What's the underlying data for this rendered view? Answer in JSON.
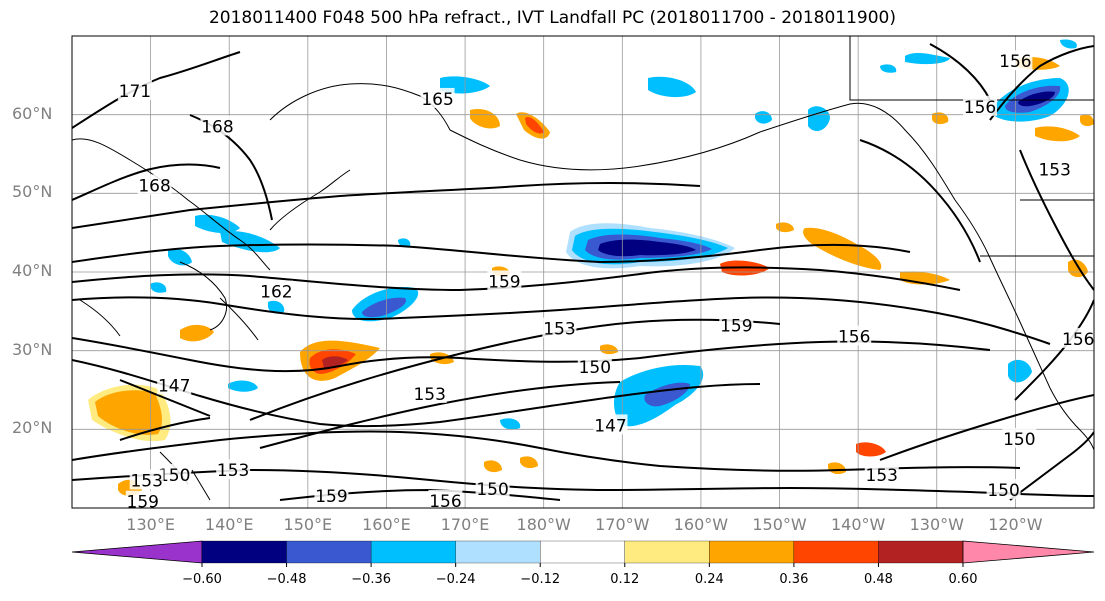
{
  "title": "2018011400 F048 500 hPa refract., IVT Landfall PC (2018011700 - 2018011900)",
  "lat_labels": [
    {
      "text": "60°N",
      "lat": 60
    },
    {
      "text": "50°N",
      "lat": 50
    },
    {
      "text": "40°N",
      "lat": 40
    },
    {
      "text": "30°N",
      "lat": 30
    },
    {
      "text": "20°N",
      "lat": 20
    }
  ],
  "lon_labels": [
    {
      "text": "130°E",
      "lon": 130
    },
    {
      "text": "140°E",
      "lon": 140
    },
    {
      "text": "150°E",
      "lon": 150
    },
    {
      "text": "160°E",
      "lon": 160
    },
    {
      "text": "170°E",
      "lon": 170
    },
    {
      "text": "180°W",
      "lon": 180
    },
    {
      "text": "170°W",
      "lon": 190
    },
    {
      "text": "160°W",
      "lon": 200
    },
    {
      "text": "150°W",
      "lon": 210
    },
    {
      "text": "140°W",
      "lon": 220
    },
    {
      "text": "130°W",
      "lon": 230
    },
    {
      "text": "120°W",
      "lon": 240
    }
  ],
  "map_extent": {
    "lon_min": 120,
    "lon_max": 250,
    "lat_min": 10,
    "lat_max": 70
  },
  "contour_labels": [
    {
      "text": "171",
      "lon": 128,
      "lat": 63
    },
    {
      "text": "168",
      "lon": 138.5,
      "lat": 58.5
    },
    {
      "text": "168",
      "lon": 130.5,
      "lat": 51
    },
    {
      "text": "165",
      "lon": 166.5,
      "lat": 62
    },
    {
      "text": "162",
      "lon": 146,
      "lat": 37.5
    },
    {
      "text": "159",
      "lon": 175,
      "lat": 38.8
    },
    {
      "text": "153",
      "lon": 182,
      "lat": 32.8
    },
    {
      "text": "159",
      "lon": 204.5,
      "lat": 33.2
    },
    {
      "text": "156",
      "lon": 219.5,
      "lat": 31.8
    },
    {
      "text": "150",
      "lon": 186.5,
      "lat": 27.9
    },
    {
      "text": "147",
      "lon": 133,
      "lat": 25.6
    },
    {
      "text": "153",
      "lon": 165.5,
      "lat": 24.5
    },
    {
      "text": "147",
      "lon": 188.5,
      "lat": 20.5
    },
    {
      "text": "153",
      "lon": 140.5,
      "lat": 14.8
    },
    {
      "text": "150",
      "lon": 133,
      "lat": 14.2
    },
    {
      "text": "153",
      "lon": 129.5,
      "lat": 13.5
    },
    {
      "text": "159",
      "lon": 129,
      "lat": 10.8
    },
    {
      "text": "159",
      "lon": 153,
      "lat": 11.5
    },
    {
      "text": "156",
      "lon": 167.5,
      "lat": 10.9
    },
    {
      "text": "150",
      "lon": 173.5,
      "lat": 12.4
    },
    {
      "text": "153",
      "lon": 223,
      "lat": 14.2
    },
    {
      "text": "150",
      "lon": 240.5,
      "lat": 18.8
    },
    {
      "text": "150",
      "lon": 238.5,
      "lat": 12.3
    },
    {
      "text": "156",
      "lon": 235.5,
      "lat": 61
    },
    {
      "text": "156",
      "lon": 240,
      "lat": 66.8
    },
    {
      "text": "153",
      "lon": 245,
      "lat": 53
    },
    {
      "text": "156",
      "lon": 248,
      "lat": 31.5
    }
  ],
  "colorbar": {
    "colors": [
      "#9933cc",
      "#000080",
      "#3a58d0",
      "#00bfff",
      "#b0e0ff",
      "#ffffff",
      "#ffeb80",
      "#ffa500",
      "#ff4500",
      "#b22222",
      "#ff88aa"
    ],
    "labels": [
      "−0.60",
      "−0.48",
      "−0.36",
      "−0.24",
      "−0.12",
      "0.12",
      "0.24",
      "0.36",
      "0.48",
      "0.60"
    ]
  }
}
